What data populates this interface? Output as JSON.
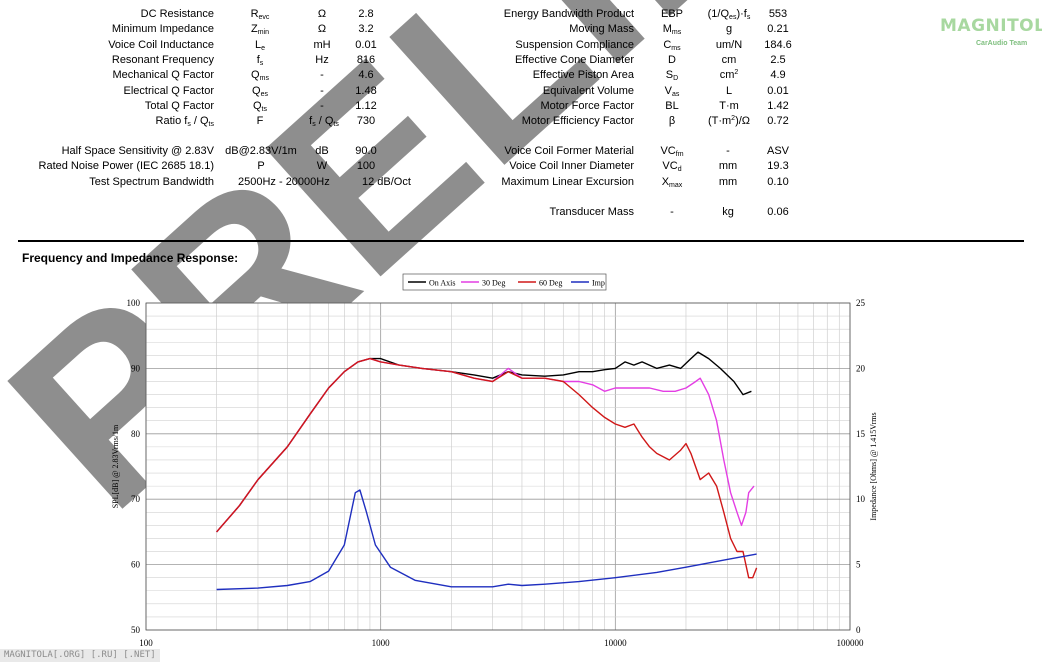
{
  "logo": {
    "name": "MAGNITOLA",
    "tagline": "CarAudio Team"
  },
  "footer_text": "MAGNITOLA[.ORG] [.RU] [.NET]",
  "watermark_text": "PRELIM",
  "left_params": [
    {
      "label": "DC Resistance",
      "sym": "R",
      "sub": "evc",
      "unit": "Ω",
      "val": "2.8"
    },
    {
      "label": "Minimum Impedance",
      "sym": "Z",
      "sub": "min",
      "unit": "Ω",
      "val": "3.2"
    },
    {
      "label": "Voice Coil Inductance",
      "sym": "L",
      "sub": "e",
      "unit": "mH",
      "val": "0.01"
    },
    {
      "label": "Resonant Frequency",
      "sym": "f",
      "sub": "s",
      "unit": "Hz",
      "val": "816"
    },
    {
      "label": "Mechanical Q Factor",
      "sym": "Q",
      "sub": "ms",
      "unit": "-",
      "val": "4.6"
    },
    {
      "label": "Electrical Q Factor",
      "sym": "Q",
      "sub": "es",
      "unit": "-",
      "val": "1.48"
    },
    {
      "label": "Total Q Factor",
      "sym": "Q",
      "sub": "ts",
      "unit": "-",
      "val": "1.12"
    }
  ],
  "ratio_row": {
    "label_main": "Ratio f",
    "label_sub1": "s",
    "label_mid": " / Q",
    "label_sub2": "ts",
    "sym": "F",
    "unit_main": "f",
    "unit_sub1": "s",
    "unit_mid": " / Q",
    "unit_sub2": "ts",
    "val": "730"
  },
  "left_params2": [
    {
      "label": "Half Space Sensitivity @ 2.83V",
      "sym": "dB@2.83V/1m",
      "unit": "dB",
      "val": "90.0"
    },
    {
      "label": "Rated Noise Power (IEC 2685 18.1)",
      "sym": "P",
      "unit": "W",
      "val": "100"
    }
  ],
  "bandwidth_row": {
    "label": "Test Spectrum Bandwidth",
    "range": "2500Hz - 20000Hz",
    "slope": "12 dB/Oct"
  },
  "right_params": [
    {
      "label": "Energy Bandwidth Product",
      "sym": "EBP",
      "sub": "",
      "unit": "(1/Q",
      "unit_sub": "es",
      "unit_tail": ")·f",
      "unit_sub2": "s",
      "val": "553"
    },
    {
      "label": "Moving Mass",
      "sym": "M",
      "sub": "ms",
      "unit": "g",
      "val": "0.21"
    },
    {
      "label": "Suspension Compliance",
      "sym": "C",
      "sub": "ms",
      "unit": "um/N",
      "val": "184.6"
    },
    {
      "label": "Effective Cone Diameter",
      "sym": "D",
      "sub": "",
      "unit": "cm",
      "val": "2.5"
    },
    {
      "label": "Effective Piston Area",
      "sym": "S",
      "sub": "D",
      "unit": "cm",
      "unit_sup": "2",
      "val": "4.9"
    },
    {
      "label": "Equivalent Volume",
      "sym": "V",
      "sub": "as",
      "unit": "L",
      "val": "0.01"
    },
    {
      "label": "Motor Force Factor",
      "sym": "BL",
      "sub": "",
      "unit": "T·m",
      "val": "1.42"
    },
    {
      "label": "Motor Efficiency Factor",
      "sym": "β",
      "sub": "",
      "unit": "(T·m",
      "unit_sup": "2",
      "unit_tail": ")/Ω",
      "val": "0.72"
    }
  ],
  "right_params2": [
    {
      "label": "Voice Coil Former Material",
      "sym": "VC",
      "sub": "fm",
      "unit": "-",
      "val": "ASV"
    },
    {
      "label": "Voice Coil Inner Diameter",
      "sym": "VC",
      "sub": "d",
      "unit": "mm",
      "val": "19.3"
    },
    {
      "label": "Maximum Linear Excursion",
      "sym": "X",
      "sub": "max",
      "unit": "mm",
      "val": "0.10"
    }
  ],
  "mass_row": {
    "label": "Transducer Mass",
    "sym": "-",
    "unit": "kg",
    "val": "0.06"
  },
  "section_title": "Frequency and Impedance Response:",
  "chart_data": {
    "type": "line",
    "xlabel": "",
    "ylabel": "SPL[dB] @ 2.83Vrms/1m",
    "y2label": "Impedance [Ohms] @ 1.415Vrms",
    "xscale": "log",
    "xlim": [
      100,
      100000
    ],
    "ylim": [
      50,
      100
    ],
    "y2lim": [
      0,
      25
    ],
    "xticks": [
      "100",
      "1000",
      "10000",
      "100000"
    ],
    "yticks": [
      "50",
      "60",
      "70",
      "80",
      "90",
      "100"
    ],
    "y2ticks": [
      "0",
      "5",
      "10",
      "15",
      "20",
      "25"
    ],
    "grid": true,
    "legend_position": "top",
    "series": [
      {
        "name": "On Axis",
        "color": "#000000",
        "axis": "left",
        "points": [
          [
            200,
            65
          ],
          [
            250,
            69
          ],
          [
            300,
            73
          ],
          [
            400,
            78
          ],
          [
            500,
            83
          ],
          [
            600,
            87
          ],
          [
            700,
            89.5
          ],
          [
            800,
            91
          ],
          [
            900,
            91.5
          ],
          [
            1000,
            91.5
          ],
          [
            1200,
            90.5
          ],
          [
            1500,
            90
          ],
          [
            2000,
            89.5
          ],
          [
            2500,
            89
          ],
          [
            3000,
            88.5
          ],
          [
            3500,
            89.5
          ],
          [
            4000,
            89
          ],
          [
            5000,
            88.8
          ],
          [
            6000,
            89
          ],
          [
            7000,
            89.5
          ],
          [
            8000,
            89.5
          ],
          [
            9000,
            89.8
          ],
          [
            10000,
            90
          ],
          [
            11000,
            91
          ],
          [
            12000,
            90.5
          ],
          [
            13000,
            91
          ],
          [
            15000,
            90
          ],
          [
            17000,
            90.5
          ],
          [
            19000,
            90
          ],
          [
            21000,
            91.5
          ],
          [
            22500,
            92.5
          ],
          [
            25000,
            91.5
          ],
          [
            28000,
            90
          ],
          [
            32000,
            88
          ],
          [
            35000,
            86
          ],
          [
            38000,
            86.5
          ]
        ]
      },
      {
        "name": "30 Deg",
        "color": "#e43ee4",
        "axis": "left",
        "points": [
          [
            200,
            65
          ],
          [
            250,
            69
          ],
          [
            300,
            73
          ],
          [
            400,
            78
          ],
          [
            500,
            83
          ],
          [
            600,
            87
          ],
          [
            700,
            89.5
          ],
          [
            800,
            91
          ],
          [
            900,
            91.5
          ],
          [
            1000,
            91
          ],
          [
            1200,
            90.5
          ],
          [
            1500,
            90
          ],
          [
            2000,
            89.5
          ],
          [
            2500,
            88.5
          ],
          [
            3000,
            88
          ],
          [
            3500,
            90
          ],
          [
            4000,
            88.5
          ],
          [
            5000,
            88.5
          ],
          [
            6000,
            88
          ],
          [
            7000,
            88
          ],
          [
            8000,
            87.5
          ],
          [
            9000,
            86.5
          ],
          [
            10000,
            87
          ],
          [
            12000,
            87
          ],
          [
            14000,
            87
          ],
          [
            16000,
            86.5
          ],
          [
            18000,
            86.5
          ],
          [
            20000,
            87
          ],
          [
            22000,
            88
          ],
          [
            23000,
            88.5
          ],
          [
            25000,
            86
          ],
          [
            27000,
            82
          ],
          [
            29000,
            76
          ],
          [
            31000,
            71
          ],
          [
            33000,
            68
          ],
          [
            34500,
            66
          ],
          [
            36000,
            68
          ],
          [
            37000,
            71
          ],
          [
            39000,
            72
          ]
        ]
      },
      {
        "name": "60 Deg",
        "color": "#d01818",
        "axis": "left",
        "points": [
          [
            200,
            65
          ],
          [
            250,
            69
          ],
          [
            300,
            73
          ],
          [
            400,
            78
          ],
          [
            500,
            83
          ],
          [
            600,
            87
          ],
          [
            700,
            89.5
          ],
          [
            800,
            91
          ],
          [
            900,
            91.5
          ],
          [
            1000,
            91
          ],
          [
            1200,
            90.5
          ],
          [
            1500,
            90
          ],
          [
            2000,
            89.5
          ],
          [
            2500,
            88.5
          ],
          [
            3000,
            88
          ],
          [
            3500,
            89.5
          ],
          [
            4000,
            88.5
          ],
          [
            5000,
            88.5
          ],
          [
            6000,
            88
          ],
          [
            7000,
            86
          ],
          [
            8000,
            84
          ],
          [
            9000,
            82.5
          ],
          [
            10000,
            81.5
          ],
          [
            11000,
            81
          ],
          [
            12000,
            81.5
          ],
          [
            13000,
            79.5
          ],
          [
            14000,
            78
          ],
          [
            15000,
            77
          ],
          [
            17000,
            76
          ],
          [
            19000,
            77.5
          ],
          [
            20000,
            78.5
          ],
          [
            21000,
            77
          ],
          [
            23000,
            73
          ],
          [
            25000,
            74
          ],
          [
            27000,
            72
          ],
          [
            29000,
            68
          ],
          [
            31000,
            64
          ],
          [
            33000,
            62
          ],
          [
            35000,
            62
          ],
          [
            37000,
            58
          ],
          [
            38500,
            58
          ],
          [
            40000,
            59.5
          ]
        ]
      },
      {
        "name": "Imp",
        "color": "#1f2fbf",
        "axis": "right",
        "points": [
          [
            200,
            3.1
          ],
          [
            300,
            3.2
          ],
          [
            400,
            3.4
          ],
          [
            500,
            3.7
          ],
          [
            600,
            4.5
          ],
          [
            700,
            6.5
          ],
          [
            780,
            10.5
          ],
          [
            816,
            10.7
          ],
          [
            870,
            9
          ],
          [
            950,
            6.5
          ],
          [
            1100,
            4.8
          ],
          [
            1400,
            3.8
          ],
          [
            2000,
            3.3
          ],
          [
            3000,
            3.3
          ],
          [
            3500,
            3.5
          ],
          [
            4000,
            3.4
          ],
          [
            5000,
            3.5
          ],
          [
            7000,
            3.7
          ],
          [
            10000,
            4.0
          ],
          [
            15000,
            4.4
          ],
          [
            20000,
            4.8
          ],
          [
            30000,
            5.4
          ],
          [
            40000,
            5.8
          ]
        ]
      }
    ]
  }
}
